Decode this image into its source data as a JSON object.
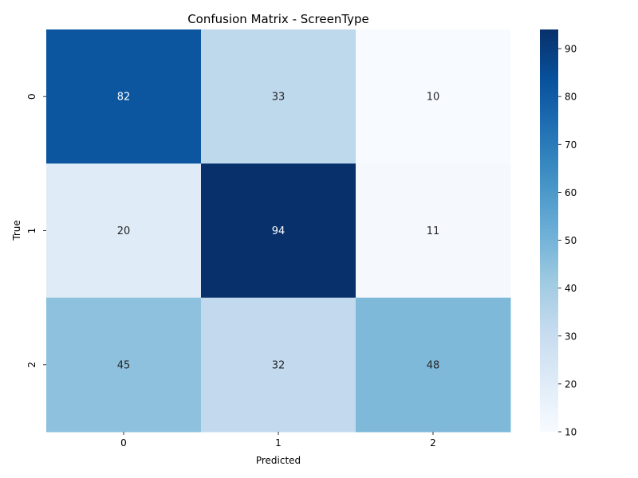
{
  "chart_data": {
    "type": "heatmap",
    "title": "Confusion Matrix - ScreenType",
    "xlabel": "Predicted",
    "ylabel": "True",
    "x_categories": [
      "0",
      "1",
      "2"
    ],
    "y_categories": [
      "0",
      "1",
      "2"
    ],
    "values": [
      [
        82,
        33,
        10
      ],
      [
        20,
        94,
        11
      ],
      [
        45,
        32,
        48
      ]
    ],
    "colormap": "Blues",
    "colorbar": {
      "range": [
        10,
        94
      ],
      "ticks": [
        10,
        20,
        30,
        40,
        50,
        60,
        70,
        80,
        90
      ]
    },
    "cell_text_colors": {
      "light": "#ffffff",
      "dark": "#262626"
    }
  }
}
